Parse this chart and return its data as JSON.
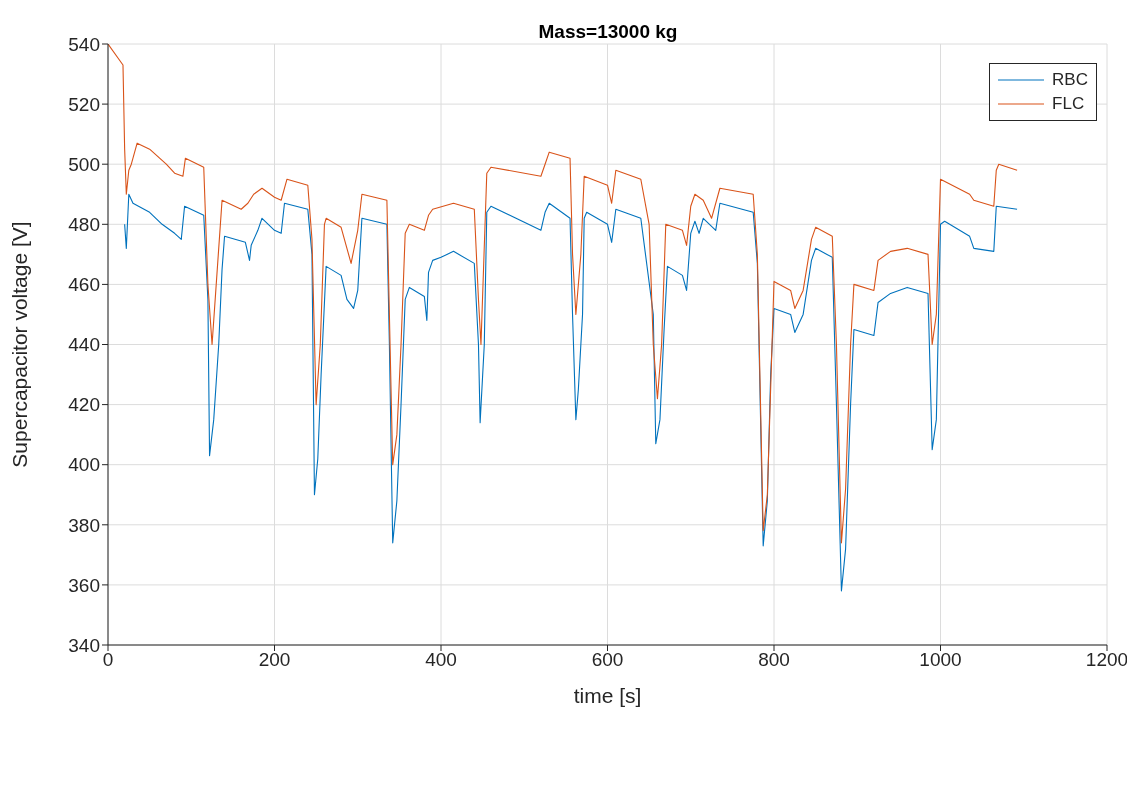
{
  "chart_data": {
    "type": "line",
    "title": "Mass=13000 kg",
    "xlabel": "time [s]",
    "ylabel": "Supercapacitor voltage [V]",
    "xlim": [
      0,
      1200
    ],
    "xticks": [
      0,
      200,
      400,
      600,
      800,
      1000,
      1200
    ],
    "ylim": [
      340,
      540
    ],
    "yticks": [
      340,
      360,
      380,
      400,
      420,
      440,
      460,
      480,
      500,
      520,
      540
    ],
    "grid": true,
    "legend": "top right",
    "marker": "none",
    "line_style": "solid",
    "series": [
      {
        "name": "RBC",
        "color": "#0072bd",
        "x": [
          20,
          22,
          25,
          30,
          50,
          65,
          80,
          88,
          92,
          115,
          120,
          122,
          127,
          133,
          137,
          140,
          165,
          170,
          172,
          180,
          185,
          200,
          208,
          212,
          240,
          245,
          248,
          252,
          256,
          262,
          280,
          287,
          295,
          300,
          305,
          335,
          338,
          342,
          347,
          352,
          357,
          362,
          380,
          383,
          385,
          390,
          400,
          415,
          440,
          445,
          447,
          452,
          455,
          460,
          520,
          525,
          530,
          555,
          558,
          562,
          565,
          570,
          572,
          575,
          600,
          605,
          610,
          640,
          655,
          658,
          663,
          668,
          672,
          690,
          695,
          700,
          705,
          710,
          715,
          730,
          735,
          775,
          780,
          787,
          792,
          796,
          800,
          820,
          825,
          835,
          845,
          850,
          870,
          875,
          881,
          886,
          892,
          896,
          920,
          925,
          940,
          960,
          985,
          990,
          995,
          1000,
          1005,
          1035,
          1040,
          1064,
          1067,
          1092
        ],
        "values": [
          480,
          472,
          490,
          487,
          484,
          480,
          477,
          475,
          486,
          483,
          455,
          403,
          415,
          440,
          465,
          476,
          474,
          468,
          473,
          478,
          482,
          478,
          477,
          487,
          485,
          470,
          390,
          402,
          430,
          466,
          463,
          455,
          452,
          458,
          482,
          480,
          440,
          374,
          388,
          420,
          455,
          459,
          456,
          448,
          464,
          468,
          469,
          471,
          467,
          440,
          414,
          440,
          484,
          486,
          478,
          484,
          487,
          482,
          450,
          415,
          425,
          450,
          482,
          484,
          480,
          474,
          485,
          482,
          450,
          407,
          415,
          445,
          466,
          463,
          458,
          477,
          481,
          477,
          482,
          478,
          487,
          484,
          467,
          373,
          388,
          430,
          452,
          450,
          444,
          450,
          468,
          472,
          469,
          420,
          358,
          372,
          420,
          445,
          443,
          454,
          457,
          459,
          457,
          405,
          415,
          480,
          481,
          476,
          472,
          471,
          486,
          485
        ]
      },
      {
        "name": "FLC",
        "color": "#d95319",
        "x": [
          0,
          18,
          20,
          22,
          25,
          28,
          35,
          50,
          70,
          80,
          90,
          93,
          115,
          120,
          125,
          130,
          137,
          160,
          168,
          175,
          185,
          200,
          208,
          215,
          240,
          245,
          250,
          255,
          260,
          262,
          280,
          287,
          292,
          300,
          305,
          335,
          338,
          342,
          347,
          352,
          357,
          362,
          380,
          385,
          390,
          415,
          440,
          445,
          448,
          455,
          460,
          520,
          525,
          530,
          555,
          558,
          562,
          568,
          572,
          600,
          605,
          610,
          640,
          650,
          655,
          660,
          665,
          670,
          690,
          695,
          700,
          705,
          715,
          725,
          735,
          775,
          780,
          787,
          792,
          800,
          820,
          825,
          835,
          845,
          850,
          870,
          875,
          881,
          886,
          892,
          896,
          920,
          925,
          940,
          960,
          985,
          990,
          995,
          1000,
          1035,
          1040,
          1064,
          1067,
          1070,
          1092
        ],
        "values": [
          540,
          533,
          505,
          490,
          498,
          500,
          507,
          505,
          500,
          497,
          496,
          502,
          499,
          460,
          440,
          460,
          488,
          485,
          487,
          490,
          492,
          489,
          488,
          495,
          493,
          475,
          420,
          440,
          480,
          482,
          479,
          472,
          467,
          478,
          490,
          488,
          450,
          400,
          410,
          440,
          477,
          480,
          478,
          483,
          485,
          487,
          485,
          455,
          440,
          497,
          499,
          496,
          500,
          504,
          502,
          470,
          450,
          470,
          496,
          493,
          487,
          498,
          495,
          480,
          440,
          422,
          440,
          480,
          478,
          473,
          486,
          490,
          488,
          482,
          492,
          490,
          470,
          378,
          390,
          461,
          458,
          452,
          458,
          475,
          479,
          476,
          440,
          374,
          392,
          440,
          460,
          458,
          468,
          471,
          472,
          470,
          440,
          450,
          495,
          490,
          488,
          486,
          498,
          500,
          498
        ]
      }
    ]
  }
}
